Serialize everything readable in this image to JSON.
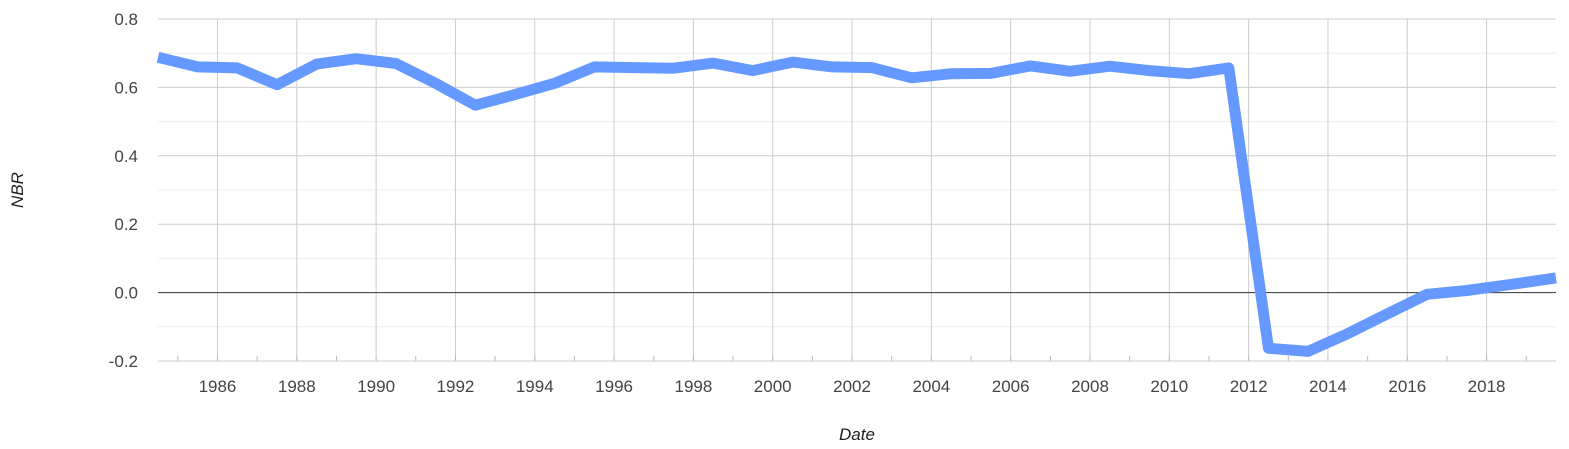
{
  "chart_data": {
    "type": "line",
    "title": "",
    "xlabel": "Date",
    "ylabel": "NBR",
    "xlim": [
      1984.5,
      2019.75
    ],
    "ylim": [
      -0.2,
      0.8
    ],
    "y_ticks": [
      "0.8",
      "0.6",
      "0.4",
      "0.2",
      "0.0",
      "-0.2"
    ],
    "y_tick_values": [
      0.8,
      0.6,
      0.4,
      0.2,
      0.0,
      -0.2
    ],
    "x_ticks": [
      "1986",
      "1988",
      "1990",
      "1992",
      "1994",
      "1996",
      "1998",
      "2000",
      "2002",
      "2004",
      "2006",
      "2008",
      "2010",
      "2012",
      "2014",
      "2016",
      "2018"
    ],
    "x_tick_values": [
      1986,
      1988,
      1990,
      1992,
      1994,
      1996,
      1998,
      2000,
      2002,
      2004,
      2006,
      2008,
      2010,
      2012,
      2014,
      2016,
      2018
    ],
    "grid": true,
    "zero_line": true,
    "series": [
      {
        "color": "#6699ff",
        "x": [
          1984.5,
          1985.5,
          1986.5,
          1987.5,
          1988.5,
          1989.5,
          1990.5,
          1991.5,
          1992.5,
          1993.5,
          1994.5,
          1995.5,
          1996.5,
          1997.5,
          1998.5,
          1999.5,
          2000.5,
          2001.5,
          2002.5,
          2003.5,
          2004.5,
          2005.5,
          2006.5,
          2007.5,
          2008.5,
          2009.5,
          2010.5,
          2011.5,
          2012.5,
          2013.5,
          2014.5,
          2015.5,
          2016.5,
          2017.5,
          2018.5,
          2019.75
        ],
        "values": [
          0.688,
          0.66,
          0.657,
          0.608,
          0.668,
          0.684,
          0.67,
          0.612,
          0.548,
          0.579,
          0.612,
          0.66,
          0.658,
          0.656,
          0.671,
          0.649,
          0.674,
          0.66,
          0.658,
          0.628,
          0.64,
          0.641,
          0.663,
          0.647,
          0.662,
          0.649,
          0.64,
          0.657,
          -0.163,
          -0.172,
          -0.12,
          -0.062,
          -0.005,
          0.006,
          0.022,
          0.043
        ]
      }
    ]
  }
}
